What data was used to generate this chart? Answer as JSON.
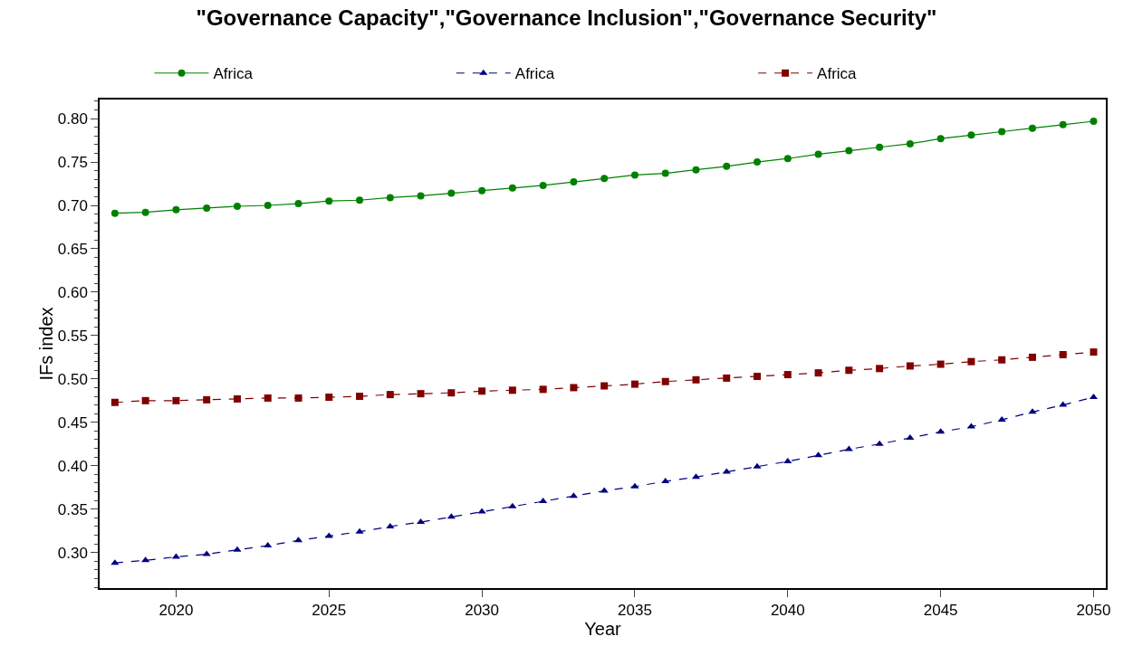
{
  "chart_data": {
    "type": "line",
    "title": "\"Governance Capacity\",\"Governance Inclusion\",\"Governance Security\"",
    "xlabel": "Year",
    "ylabel": "IFs index",
    "x": [
      2018,
      2019,
      2020,
      2021,
      2022,
      2023,
      2024,
      2025,
      2026,
      2027,
      2028,
      2029,
      2030,
      2031,
      2032,
      2033,
      2034,
      2035,
      2036,
      2037,
      2038,
      2039,
      2040,
      2041,
      2042,
      2043,
      2044,
      2045,
      2046,
      2047,
      2048,
      2049,
      2050
    ],
    "xlim": [
      2017.5,
      2050.4
    ],
    "xticks": [
      2020,
      2025,
      2030,
      2035,
      2040,
      2045,
      2050
    ],
    "ylim": [
      0.259,
      0.822
    ],
    "yticks": [
      {
        "value": 0.3,
        "label": "0.30"
      },
      {
        "value": 0.35,
        "label": "0.35"
      },
      {
        "value": 0.4,
        "label": "0.40"
      },
      {
        "value": 0.45,
        "label": "0.45"
      },
      {
        "value": 0.5,
        "label": "0.50"
      },
      {
        "value": 0.55,
        "label": "0.55"
      },
      {
        "value": 0.6,
        "label": "0.60"
      },
      {
        "value": 0.65,
        "label": "0.65"
      },
      {
        "value": 0.7,
        "label": "0.70"
      },
      {
        "value": 0.75,
        "label": "0.75"
      },
      {
        "value": 0.8,
        "label": "0.80"
      }
    ],
    "legend": "top",
    "series": [
      {
        "name": "Africa",
        "color": "#008000",
        "marker": "circle",
        "line_style": "solid",
        "values": [
          0.691,
          0.692,
          0.695,
          0.697,
          0.699,
          0.7,
          0.702,
          0.705,
          0.706,
          0.709,
          0.711,
          0.714,
          0.717,
          0.72,
          0.723,
          0.727,
          0.731,
          0.735,
          0.737,
          0.741,
          0.745,
          0.75,
          0.754,
          0.759,
          0.763,
          0.767,
          0.771,
          0.777,
          0.781,
          0.785,
          0.789,
          0.793,
          0.797
        ]
      },
      {
        "name": "Africa",
        "color": "#000080",
        "marker": "triangle",
        "line_style": "dashed",
        "values": [
          0.288,
          0.291,
          0.295,
          0.298,
          0.303,
          0.308,
          0.314,
          0.319,
          0.324,
          0.33,
          0.335,
          0.341,
          0.347,
          0.353,
          0.359,
          0.365,
          0.371,
          0.376,
          0.382,
          0.387,
          0.393,
          0.399,
          0.405,
          0.412,
          0.419,
          0.425,
          0.432,
          0.439,
          0.445,
          0.453,
          0.462,
          0.47,
          0.479
        ]
      },
      {
        "name": "Africa",
        "color": "#800000",
        "marker": "square",
        "line_style": "dashed",
        "values": [
          0.473,
          0.475,
          0.475,
          0.476,
          0.477,
          0.478,
          0.478,
          0.479,
          0.48,
          0.482,
          0.483,
          0.484,
          0.486,
          0.487,
          0.488,
          0.49,
          0.492,
          0.494,
          0.497,
          0.499,
          0.501,
          0.503,
          0.505,
          0.507,
          0.51,
          0.512,
          0.515,
          0.517,
          0.52,
          0.522,
          0.525,
          0.528,
          0.531
        ]
      }
    ]
  }
}
